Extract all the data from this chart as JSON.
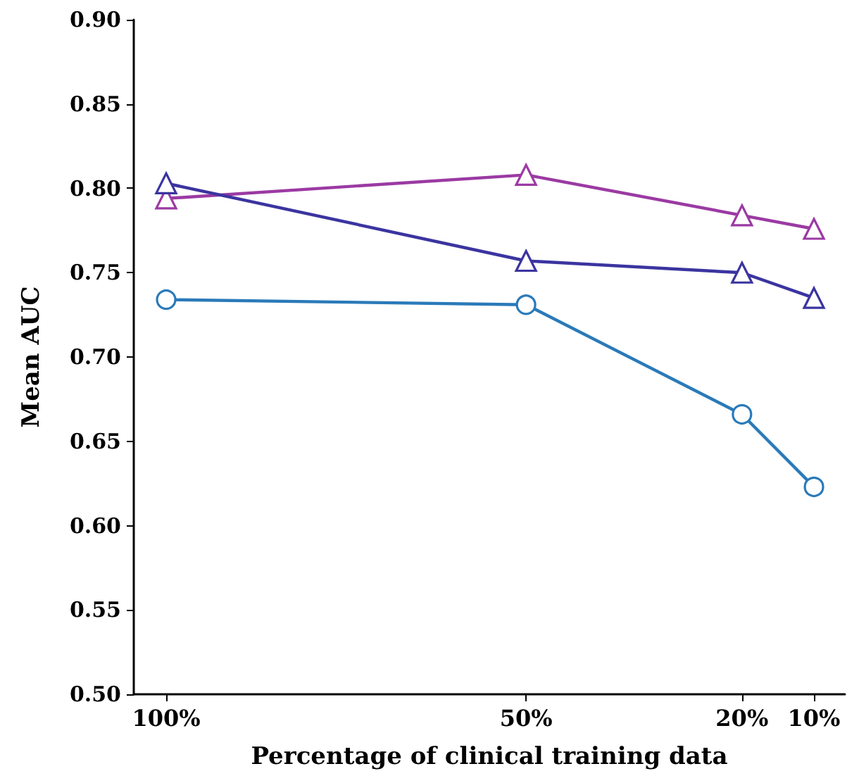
{
  "chart_data": {
    "type": "line",
    "xlabel": "Percentage of clinical training data",
    "ylabel": "Mean AUC",
    "xlim": [
      104.5,
      5.7
    ],
    "xticks": [
      {
        "value": 100,
        "label": "100%"
      },
      {
        "value": 50,
        "label": "50%"
      },
      {
        "value": 20,
        "label": "20%"
      },
      {
        "value": 10,
        "label": "10%"
      }
    ],
    "ylim": [
      0.5,
      0.9
    ],
    "yticks": [
      {
        "value": 0.5,
        "label": "0.50"
      },
      0.55,
      {
        "value": 0.6,
        "label": "0.60"
      },
      0.65,
      {
        "value": 0.7,
        "label": "0.70"
      },
      0.75,
      {
        "value": 0.8,
        "label": "0.80"
      },
      0.85,
      {
        "value": 0.9,
        "label": "0.90"
      }
    ],
    "x": [
      100,
      50,
      20,
      10
    ],
    "grid": false,
    "series": [
      {
        "color": "#9b3aa3",
        "marker": "triangle",
        "values": [
          0.794,
          0.808,
          0.784,
          0.776
        ]
      },
      {
        "color": "#3b34a0",
        "marker": "triangle",
        "values": [
          0.803,
          0.757,
          0.75,
          0.735
        ]
      },
      {
        "color": "#2a7ab9",
        "marker": "circle",
        "values": [
          0.734,
          0.731,
          0.666,
          0.623
        ]
      }
    ]
  }
}
